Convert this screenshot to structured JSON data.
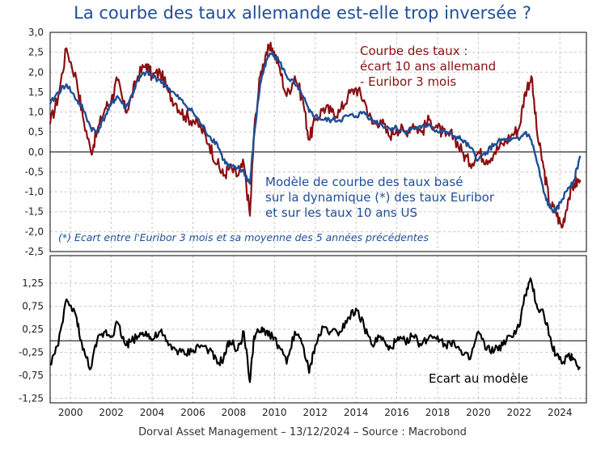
{
  "title": "La courbe des taux allemande est-elle trop inversée ?",
  "footer": "Dorval Asset Management – 13/12/2024 –  Source : Macrobond",
  "colors": {
    "red": "#8b0f12",
    "blue": "#1f4e96",
    "black": "#000000",
    "grid": "#c8c8c8"
  },
  "annotations": {
    "red_line1": "Courbe des taux :",
    "red_line2": "écart 10 ans allemand",
    "red_line3": "- Euribor 3 mois",
    "blue_line1": "Modèle de courbe des taux basé",
    "blue_line2": "sur la dynamique (*) des taux Euribor",
    "blue_line3": "et sur les taux 10 ans US",
    "note": "(*) Ecart entre l'Euribor 3 mois et sa moyenne des 5 années précédentes",
    "black_label": "Ecart au modèle"
  },
  "chart_data": [
    {
      "type": "line",
      "grid": true,
      "ylim": [
        -2.5,
        3.0
      ],
      "yticks": [
        "3,0",
        "2,5",
        "2,0",
        "1,5",
        "1,0",
        "0,5",
        "0,0",
        "-0,5",
        "-1,0",
        "-1,5",
        "-2,0",
        "-2,5"
      ],
      "xlim": [
        1999.0,
        2025.3
      ],
      "series": [
        {
          "name": "Courbe des taux : écart 10 ans allemand - Euribor 3 mois",
          "x": [
            1999.0,
            1999.4,
            1999.8,
            2000.3,
            2000.6,
            2001.0,
            2001.3,
            2001.7,
            2002.0,
            2002.3,
            2002.7,
            2003.0,
            2003.3,
            2003.7,
            2004.0,
            2004.4,
            2004.8,
            2005.2,
            2005.6,
            2006.0,
            2006.4,
            2006.8,
            2007.2,
            2007.5,
            2007.8,
            2008.2,
            2008.5,
            2008.8,
            2009.0,
            2009.3,
            2009.6,
            2009.9,
            2010.2,
            2010.6,
            2011.0,
            2011.4,
            2011.7,
            2012.0,
            2012.4,
            2012.8,
            2013.2,
            2013.6,
            2014.0,
            2014.4,
            2014.8,
            2015.2,
            2015.6,
            2016.0,
            2016.4,
            2016.8,
            2017.2,
            2017.6,
            2018.0,
            2018.4,
            2018.8,
            2019.2,
            2019.6,
            2020.0,
            2020.4,
            2020.8,
            2021.2,
            2021.6,
            2022.0,
            2022.3,
            2022.6,
            2022.9,
            2023.2,
            2023.5,
            2023.8,
            2024.1,
            2024.4,
            2024.7,
            2025.0
          ],
          "y": [
            0.7,
            1.4,
            2.6,
            1.8,
            0.9,
            0.0,
            0.5,
            1.1,
            1.3,
            1.8,
            1.0,
            1.4,
            1.9,
            2.2,
            1.9,
            2.0,
            1.5,
            1.2,
            0.9,
            0.8,
            0.6,
            0.2,
            -0.3,
            -0.6,
            -0.4,
            -0.6,
            -0.3,
            -1.6,
            0.5,
            1.9,
            2.5,
            2.6,
            2.2,
            1.4,
            1.9,
            1.3,
            0.3,
            0.8,
            1.1,
            1.0,
            1.0,
            1.4,
            1.6,
            1.3,
            0.7,
            0.8,
            0.4,
            0.6,
            0.5,
            0.7,
            0.5,
            0.8,
            0.6,
            0.4,
            0.4,
            0.0,
            -0.3,
            0.0,
            -0.2,
            0.0,
            0.2,
            0.4,
            0.6,
            1.5,
            1.9,
            0.4,
            -0.4,
            -1.3,
            -1.5,
            -1.9,
            -1.2,
            -0.8,
            -0.7
          ]
        },
        {
          "name": "Modèle de courbe des taux basé sur la dynamique (*) des taux Euribor et sur les taux 10 ans US",
          "x": [
            1999.0,
            1999.4,
            1999.8,
            2000.3,
            2000.6,
            2001.0,
            2001.3,
            2001.7,
            2002.0,
            2002.3,
            2002.7,
            2003.0,
            2003.3,
            2003.7,
            2004.0,
            2004.4,
            2004.8,
            2005.2,
            2005.6,
            2006.0,
            2006.4,
            2006.8,
            2007.2,
            2007.5,
            2007.8,
            2008.2,
            2008.5,
            2008.8,
            2009.0,
            2009.3,
            2009.6,
            2009.9,
            2010.2,
            2010.6,
            2011.0,
            2011.4,
            2011.7,
            2012.0,
            2012.4,
            2012.8,
            2013.2,
            2013.6,
            2014.0,
            2014.4,
            2014.8,
            2015.2,
            2015.6,
            2016.0,
            2016.4,
            2016.8,
            2017.2,
            2017.6,
            2018.0,
            2018.4,
            2018.8,
            2019.2,
            2019.6,
            2020.0,
            2020.4,
            2020.8,
            2021.2,
            2021.6,
            2022.0,
            2022.3,
            2022.6,
            2022.9,
            2023.2,
            2023.5,
            2023.8,
            2024.1,
            2024.4,
            2024.7,
            2025.0
          ],
          "y": [
            1.2,
            1.5,
            1.7,
            1.3,
            1.1,
            0.6,
            0.5,
            0.9,
            1.2,
            1.4,
            1.1,
            1.4,
            1.8,
            2.0,
            1.9,
            1.8,
            1.6,
            1.4,
            1.2,
            1.0,
            0.7,
            0.4,
            0.2,
            -0.2,
            -0.4,
            -0.4,
            -0.5,
            -0.8,
            0.4,
            1.7,
            2.3,
            2.5,
            2.3,
            1.9,
            1.7,
            1.4,
            1.0,
            0.9,
            0.8,
            0.8,
            0.8,
            0.9,
            0.9,
            1.0,
            0.8,
            0.7,
            0.6,
            0.6,
            0.5,
            0.6,
            0.6,
            0.7,
            0.5,
            0.5,
            0.4,
            0.3,
            0.1,
            -0.2,
            0.0,
            0.2,
            0.3,
            0.3,
            0.3,
            0.5,
            0.3,
            -0.3,
            -1.0,
            -1.4,
            -1.5,
            -1.2,
            -0.9,
            -0.7,
            -0.1
          ]
        }
      ]
    },
    {
      "type": "line",
      "grid": true,
      "ylim": [
        -1.35,
        1.85
      ],
      "yticks": [
        "1,25",
        "0,75",
        "0,25",
        "-0,25",
        "-0,75",
        "-1,25"
      ],
      "xlim": [
        1999.0,
        2025.3
      ],
      "xticks": [
        "2000",
        "2002",
        "2004",
        "2006",
        "2008",
        "2010",
        "2012",
        "2014",
        "2016",
        "2018",
        "2020",
        "2022",
        "2024"
      ],
      "series": [
        {
          "name": "Ecart au modèle",
          "x": [
            1999.0,
            1999.4,
            1999.8,
            2000.3,
            2000.6,
            2001.0,
            2001.3,
            2001.7,
            2002.0,
            2002.3,
            2002.7,
            2003.0,
            2003.3,
            2003.7,
            2004.0,
            2004.4,
            2004.8,
            2005.2,
            2005.6,
            2006.0,
            2006.4,
            2006.8,
            2007.2,
            2007.5,
            2007.8,
            2008.2,
            2008.5,
            2008.8,
            2009.0,
            2009.3,
            2009.6,
            2009.9,
            2010.2,
            2010.6,
            2011.0,
            2011.4,
            2011.7,
            2012.0,
            2012.4,
            2012.8,
            2013.2,
            2013.6,
            2014.0,
            2014.4,
            2014.8,
            2015.2,
            2015.6,
            2016.0,
            2016.4,
            2016.8,
            2017.2,
            2017.6,
            2018.0,
            2018.4,
            2018.8,
            2019.2,
            2019.6,
            2020.0,
            2020.4,
            2020.8,
            2021.2,
            2021.6,
            2022.0,
            2022.3,
            2022.6,
            2022.9,
            2023.2,
            2023.5,
            2023.8,
            2024.1,
            2024.4,
            2024.7,
            2025.0
          ],
          "y": [
            -0.5,
            -0.1,
            0.9,
            0.5,
            -0.2,
            -0.6,
            0.0,
            0.2,
            0.1,
            0.4,
            -0.1,
            0.0,
            0.1,
            0.2,
            0.0,
            0.2,
            -0.1,
            -0.2,
            -0.3,
            -0.2,
            -0.1,
            -0.2,
            -0.5,
            -0.4,
            0.0,
            -0.2,
            0.2,
            -0.9,
            0.1,
            0.2,
            0.2,
            0.1,
            -0.1,
            -0.5,
            0.2,
            -0.1,
            -0.7,
            -0.1,
            0.3,
            0.2,
            0.2,
            0.5,
            0.7,
            0.3,
            -0.1,
            0.1,
            -0.2,
            0.0,
            0.0,
            0.1,
            -0.1,
            0.1,
            0.1,
            -0.1,
            0.0,
            -0.3,
            -0.4,
            0.2,
            -0.2,
            -0.2,
            -0.1,
            0.1,
            0.3,
            1.0,
            1.3,
            0.7,
            0.6,
            0.1,
            -0.3,
            -0.5,
            -0.3,
            -0.4,
            -0.6
          ]
        }
      ]
    }
  ]
}
